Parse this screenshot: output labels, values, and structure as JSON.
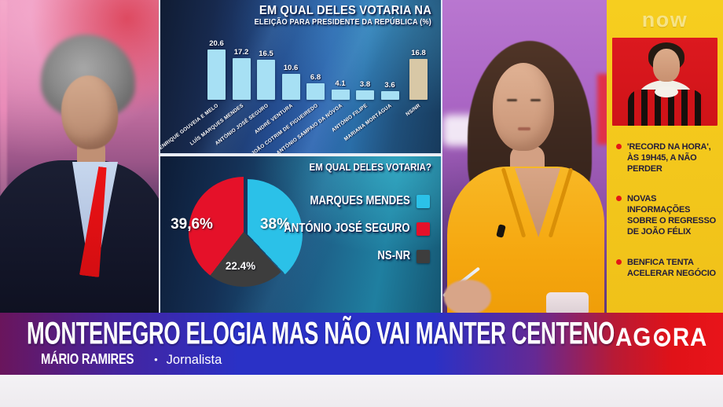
{
  "channel": {
    "logo_text": "now"
  },
  "chart_data": [
    {
      "type": "bar",
      "title": "EM QUAL DELES VOTARIA NA",
      "subtitle": "ELEIÇÃO PARA PRESIDENTE DA REPÚBLICA (%)",
      "categories": [
        "HENRIQUE GOUVEIA E MELO",
        "LUÍS MARQUES MENDES",
        "ANTÓNIO JOSÉ SEGURO",
        "ANDRÉ VENTURA",
        "JOÃO COTRIM DE FIGUEIREDO",
        "ANTÓNIO SAMPAIO DA NÓVOA",
        "ANTÓNIO FILIPE",
        "MARIANA MORTÁGUA",
        "NS/NR"
      ],
      "values": [
        20.6,
        17.2,
        16.5,
        10.6,
        6.8,
        4.1,
        3.8,
        3.6,
        16.8
      ],
      "bar_color": "#a7e0f4",
      "last_bar_color": "#d8c8a6",
      "ylim": [
        0,
        22
      ],
      "grid": false,
      "legend_position": "none"
    },
    {
      "type": "pie",
      "title": "EM QUAL DELES VOTARIA?",
      "slices": [
        {
          "label": "MARQUES MENDES",
          "value": 38,
          "value_label": "38%",
          "color": "#2bc1e8"
        },
        {
          "label": "ANTÓNIO JOSÉ SEGURO",
          "value": 39.6,
          "value_label": "39,6%",
          "color": "#e51129"
        },
        {
          "label": "NS-NR",
          "value": 22.4,
          "value_label": "22.4%",
          "color": "#3d3d3d"
        }
      ],
      "clockwise_order": [
        "MARQUES MENDES",
        "NS-NR",
        "ANTÓNIO JOSÉ SEGURO"
      ],
      "legend_position": "right"
    }
  ],
  "sidebar": {
    "logo_text": "now",
    "background_color": "#f3c71d",
    "photo_panel_color": "#d6161c",
    "bullet_color": "#e41616",
    "bullets": [
      "'RECORD NA HORA', ÀS 19H45, A NÃO PERDER",
      "NOVAS INFORMAÇÕES SOBRE O REGRESSO DE JOÃO FÉLIX",
      "BENFICA TENTA ACELERAR NEGÓCIO"
    ]
  },
  "banner": {
    "headline": "MONTENEGRO ELOGIA MAS NÃO VAI MANTER CENTENO",
    "speaker_name": "MÁRIO RAMIRES",
    "separator": "•",
    "speaker_role": "Jornalista",
    "agora_prefix": "AG",
    "agora_suffix": "RA",
    "gradient_left": "#6a155c",
    "gradient_mid": "#2a31c6",
    "gradient_right": "#e8141a"
  }
}
